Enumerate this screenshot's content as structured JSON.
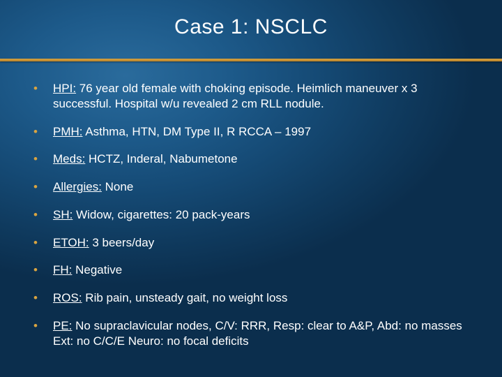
{
  "slide": {
    "title": "Case 1: NSCLC",
    "divider_color": "#d9a441",
    "bullet_color": "#d9a441",
    "text_color": "#ffffff",
    "background_gradient": [
      "#2a6b9c",
      "#1d5a8a",
      "#154a75",
      "#0f3a5e",
      "#0b2e4d"
    ],
    "title_fontsize": 30,
    "item_fontsize": 17,
    "items": [
      {
        "label": "HPI:",
        "text": " 76 year old female with choking episode. Heimlich maneuver x 3 successful. Hospital w/u revealed 2 cm RLL nodule."
      },
      {
        "label": "PMH:",
        "text": " Asthma, HTN, DM Type II, R RCCA – 1997"
      },
      {
        "label": "Meds:",
        "text": " HCTZ, Inderal, Nabumetone"
      },
      {
        "label": "Allergies:",
        "text": " None"
      },
      {
        "label": "SH:",
        "text": " Widow, cigarettes: 20 pack-years"
      },
      {
        "label": "ETOH:",
        "text": " 3 beers/day"
      },
      {
        "label": "FH:",
        "text": " Negative"
      },
      {
        "label": "ROS:",
        "text": " Rib pain, unsteady gait, no weight loss"
      },
      {
        "label": "PE:",
        "text": "  No supraclavicular nodes, C/V: RRR, Resp: clear to A&P, Abd: no masses Ext: no C/C/E Neuro: no focal deficits"
      }
    ]
  }
}
